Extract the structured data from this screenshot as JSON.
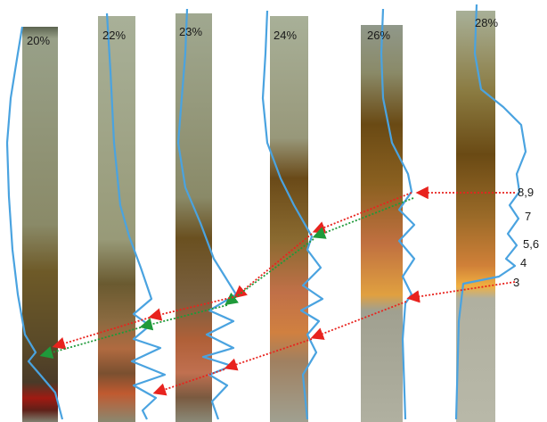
{
  "strips": [
    {
      "label": "20%"
    },
    {
      "label": "22%"
    },
    {
      "label": "23%"
    },
    {
      "label": "24%"
    },
    {
      "label": "26%"
    },
    {
      "label": "28%"
    }
  ],
  "bands": [
    {
      "label": "8,9"
    },
    {
      "label": "7"
    },
    {
      "label": "5,6"
    },
    {
      "label": "4"
    },
    {
      "label": "3"
    }
  ]
}
